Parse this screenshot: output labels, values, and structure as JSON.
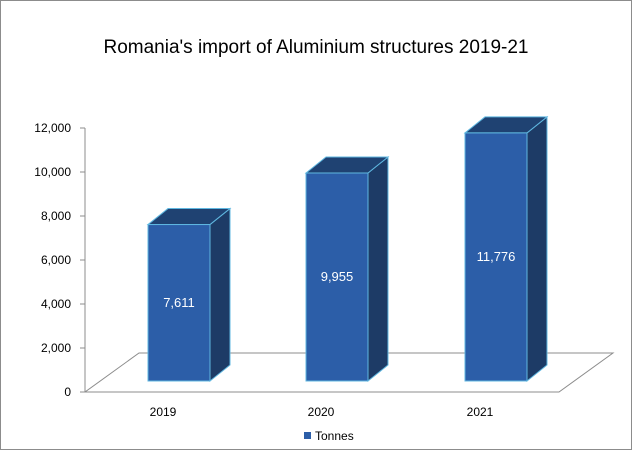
{
  "chart_data": {
    "type": "bar",
    "title": "Romania's import of Aluminium structures 2019-21",
    "categories": [
      "2019",
      "2020",
      "2021"
    ],
    "series": [
      {
        "name": "Tonnes",
        "values": [
          7611,
          9955,
          11776
        ]
      }
    ],
    "data_labels": [
      "7,611",
      "9,955",
      "11,776"
    ],
    "yticks": [
      "0",
      "2,000",
      "4,000",
      "6,000",
      "8,000",
      "10,000",
      "12,000"
    ],
    "ylim": [
      0,
      12000
    ],
    "xlabel": "",
    "ylabel": "",
    "legend_position": "bottom",
    "colors": {
      "front": "#2c5ea8",
      "side": "#1d3b66",
      "top": "#1f4272",
      "edge": "#5fb7e0"
    }
  }
}
